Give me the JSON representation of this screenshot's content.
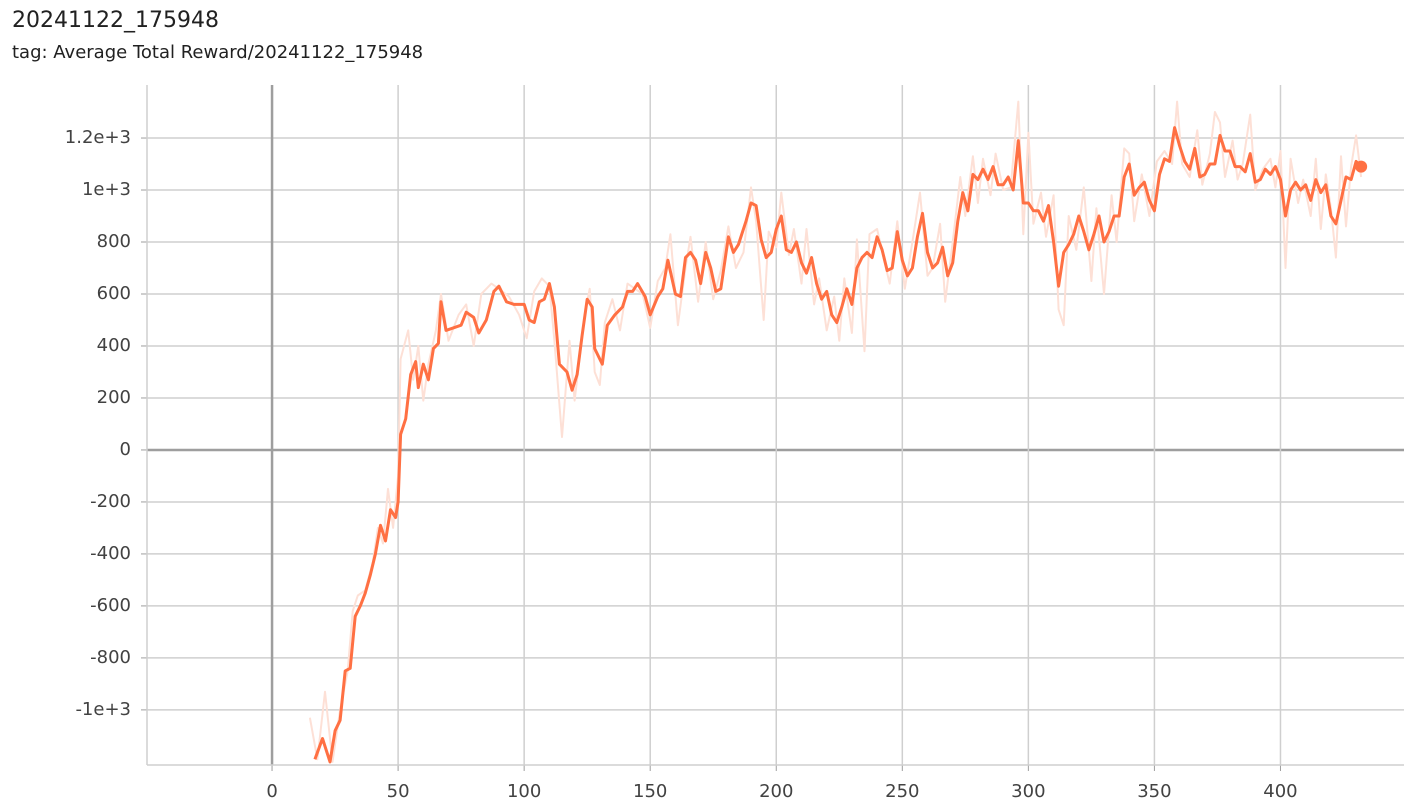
{
  "chart_data": {
    "type": "line",
    "title": "20241122_175948",
    "subtitle": "tag: Average Total Reward/20241122_175948",
    "xlim": [
      -49.6,
      449
    ],
    "ylim": [
      -1212,
      1404
    ],
    "xticks": [
      0,
      50,
      100,
      150,
      200,
      250,
      300,
      350,
      400
    ],
    "yticks": [
      {
        "value": -1000,
        "label": "-1e+3"
      },
      -800,
      -600,
      -400,
      -200,
      0,
      200,
      400,
      600,
      800,
      {
        "value": 1000,
        "label": "1e+3"
      },
      {
        "value": 1200,
        "label": "1.2e+3"
      }
    ],
    "grid": true,
    "series": [
      {
        "color": "#fde0d6",
        "x": [
          15,
          18,
          21,
          24,
          27,
          30,
          32,
          34,
          37,
          40,
          42,
          44,
          46,
          48,
          50,
          51,
          54,
          56,
          58,
          60,
          62,
          65,
          67,
          70,
          74,
          77,
          80,
          83,
          87,
          90,
          94,
          98,
          101,
          104,
          107,
          110,
          112,
          115,
          118,
          120,
          124,
          126,
          128,
          130,
          132,
          135,
          138,
          141,
          144,
          147,
          150,
          153,
          156,
          158,
          161,
          164,
          166,
          169,
          172,
          175,
          178,
          181,
          184,
          187,
          190,
          192,
          195,
          197,
          200,
          202,
          205,
          207,
          210,
          212,
          215,
          217,
          220,
          223,
          225,
          227,
          230,
          232,
          235,
          237,
          240,
          243,
          245,
          248,
          251,
          254,
          257,
          260,
          262,
          265,
          267,
          270,
          273,
          275,
          278,
          280,
          282,
          285,
          287,
          290,
          293,
          296,
          298,
          300,
          302,
          305,
          307,
          310,
          312,
          314,
          316,
          319,
          322,
          325,
          327,
          330,
          333,
          335,
          338,
          340,
          342,
          345,
          348,
          351,
          354,
          357,
          359,
          361,
          364,
          367,
          369,
          372,
          374,
          376,
          378,
          381,
          383,
          385,
          388,
          390,
          393,
          396,
          398,
          400,
          402,
          404,
          407,
          409,
          412,
          414,
          416,
          418,
          420,
          422,
          424,
          426,
          428,
          430,
          432
        ],
        "values": [
          -1030,
          -1190,
          -930,
          -1200,
          -1000,
          -850,
          -620,
          -560,
          -540,
          -430,
          -300,
          -360,
          -150,
          -300,
          -100,
          350,
          460,
          270,
          400,
          190,
          330,
          460,
          600,
          420,
          520,
          560,
          400,
          600,
          640,
          620,
          590,
          520,
          430,
          610,
          660,
          630,
          420,
          50,
          420,
          190,
          520,
          620,
          300,
          250,
          490,
          580,
          460,
          640,
          620,
          600,
          470,
          650,
          700,
          830,
          480,
          700,
          820,
          570,
          800,
          580,
          690,
          860,
          700,
          760,
          1010,
          880,
          500,
          840,
          780,
          990,
          750,
          850,
          640,
          850,
          560,
          660,
          460,
          590,
          420,
          660,
          450,
          810,
          380,
          830,
          850,
          720,
          640,
          880,
          620,
          800,
          990,
          670,
          700,
          870,
          570,
          800,
          1050,
          900,
          1130,
          950,
          1120,
          980,
          1140,
          1000,
          1010,
          1340,
          830,
          1220,
          870,
          990,
          820,
          980,
          540,
          480,
          900,
          770,
          1010,
          650,
          930,
          600,
          980,
          800,
          1160,
          1140,
          880,
          1060,
          900,
          1110,
          1150,
          1100,
          1340,
          1100,
          1050,
          1230,
          1020,
          1140,
          1300,
          1260,
          1050,
          1190,
          1040,
          1100,
          1290,
          1000,
          1080,
          1120,
          1010,
          1150,
          700,
          1120,
          950,
          1040,
          900,
          1120,
          850,
          1060,
          930,
          740,
          1130,
          860,
          1090,
          1210,
          1050
        ]
      },
      {
        "color": "#ff7043",
        "x": [
          17,
          20,
          23,
          25,
          27,
          29,
          31,
          33,
          35,
          37,
          39,
          41,
          43,
          45,
          47,
          49,
          50,
          51,
          53,
          55,
          57,
          58,
          60,
          62,
          64,
          66,
          67,
          69,
          72,
          75,
          77,
          80,
          82,
          85,
          88,
          90,
          93,
          96,
          100,
          102,
          104,
          106,
          108,
          110,
          112,
          114,
          117,
          119,
          121,
          123,
          125,
          127,
          128,
          131,
          133,
          136,
          139,
          141,
          143,
          145,
          148,
          150,
          153,
          155,
          157,
          160,
          162,
          164,
          166,
          168,
          170,
          172,
          174,
          176,
          178,
          181,
          183,
          185,
          188,
          190,
          192,
          194,
          196,
          198,
          200,
          202,
          204,
          206,
          208,
          210,
          212,
          214,
          216,
          218,
          220,
          222,
          224,
          226,
          228,
          230,
          232,
          234,
          236,
          238,
          240,
          242,
          244,
          246,
          248,
          250,
          252,
          254,
          256,
          258,
          260,
          262,
          264,
          266,
          268,
          270,
          272,
          274,
          276,
          278,
          280,
          282,
          284,
          286,
          288,
          290,
          292,
          294,
          296,
          298,
          300,
          302,
          304,
          306,
          308,
          310,
          312,
          314,
          316,
          318,
          320,
          322,
          324,
          326,
          328,
          330,
          332,
          334,
          336,
          338,
          340,
          342,
          344,
          346,
          348,
          350,
          352,
          354,
          356,
          358,
          360,
          362,
          364,
          366,
          368,
          370,
          372,
          374,
          376,
          378,
          380,
          382,
          384,
          386,
          388,
          390,
          392,
          394,
          396,
          398,
          400,
          402,
          404,
          406,
          408,
          410,
          412,
          414,
          416,
          418,
          420,
          422,
          424,
          426,
          428,
          430,
          432
        ],
        "values": [
          -1190,
          -1110,
          -1200,
          -1080,
          -1040,
          -850,
          -840,
          -640,
          -600,
          -550,
          -480,
          -400,
          -290,
          -350,
          -230,
          -260,
          -200,
          60,
          120,
          290,
          340,
          240,
          330,
          270,
          390,
          410,
          570,
          460,
          470,
          480,
          530,
          510,
          450,
          500,
          610,
          630,
          570,
          560,
          560,
          500,
          490,
          570,
          580,
          640,
          550,
          330,
          300,
          230,
          290,
          440,
          580,
          550,
          390,
          330,
          480,
          520,
          550,
          610,
          610,
          640,
          590,
          520,
          590,
          620,
          730,
          600,
          590,
          740,
          760,
          730,
          640,
          760,
          700,
          610,
          620,
          820,
          760,
          790,
          880,
          950,
          940,
          810,
          740,
          760,
          850,
          900,
          770,
          760,
          800,
          720,
          680,
          740,
          640,
          580,
          610,
          520,
          490,
          550,
          620,
          560,
          700,
          740,
          760,
          740,
          820,
          770,
          690,
          700,
          840,
          730,
          670,
          700,
          820,
          910,
          760,
          700,
          720,
          780,
          670,
          720,
          880,
          990,
          920,
          1060,
          1040,
          1080,
          1040,
          1090,
          1020,
          1020,
          1050,
          1000,
          1190,
          950,
          950,
          920,
          920,
          880,
          940,
          800,
          630,
          760,
          790,
          830,
          900,
          840,
          770,
          830,
          900,
          800,
          840,
          900,
          900,
          1050,
          1100,
          980,
          1010,
          1030,
          960,
          920,
          1060,
          1120,
          1110,
          1240,
          1170,
          1110,
          1080,
          1160,
          1050,
          1060,
          1100,
          1100,
          1210,
          1150,
          1150,
          1090,
          1090,
          1070,
          1140,
          1030,
          1040,
          1080,
          1060,
          1090,
          1040,
          900,
          1000,
          1030,
          1000,
          1020,
          960,
          1040,
          990,
          1020,
          900,
          870,
          960,
          1050,
          1040,
          1110,
          1090
        ]
      }
    ]
  }
}
